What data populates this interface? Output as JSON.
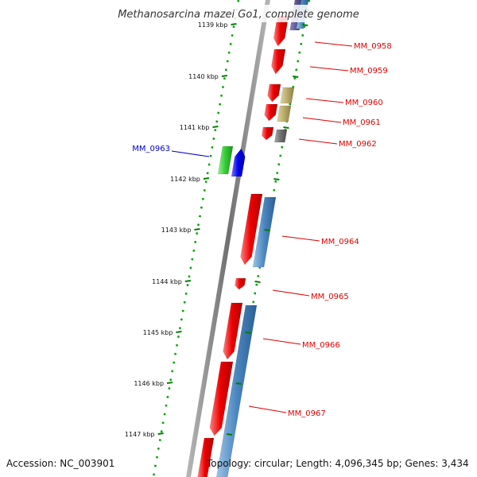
{
  "title": "Methanosarcina mazei Go1, complete genome",
  "footer": {
    "accession": "Accession: NC_003901",
    "topology": "Topology: circular; Length: 4,096,345 bp; Genes: 3,434"
  },
  "ticks": [
    {
      "label": "1139 kbp"
    },
    {
      "label": "1140 kbp"
    },
    {
      "label": "1141 kbp"
    },
    {
      "label": "1142 kbp"
    },
    {
      "label": "1143 kbp"
    },
    {
      "label": "1144 kbp"
    },
    {
      "label": "1145 kbp"
    },
    {
      "label": "1146 kbp"
    },
    {
      "label": "1147 kbp"
    }
  ],
  "gene_labels": [
    {
      "id": "MM_0958",
      "color": "#e00000"
    },
    {
      "id": "MM_0959",
      "color": "#e00000"
    },
    {
      "id": "MM_0960",
      "color": "#e00000"
    },
    {
      "id": "MM_0961",
      "color": "#e00000"
    },
    {
      "id": "MM_0962",
      "color": "#e00000"
    },
    {
      "id": "MM_0963",
      "color": "#0000cc"
    },
    {
      "id": "MM_0964",
      "color": "#e00000"
    },
    {
      "id": "MM_0965",
      "color": "#e00000"
    },
    {
      "id": "MM_0966",
      "color": "#e00000"
    },
    {
      "id": "MM_0967",
      "color": "#e00000"
    }
  ],
  "colors": {
    "backbone": "#808080",
    "ring_dots": "#00a000",
    "tick_marks": "#008000",
    "cds": "#ee0000",
    "gene_blue": "#4a86c0",
    "gene_khaki": "#b9ac6a",
    "gene_gray": "#707070",
    "gene_green": "#33cc33",
    "gene_navy": "#0000ee",
    "gene_purple": "#55508f"
  }
}
